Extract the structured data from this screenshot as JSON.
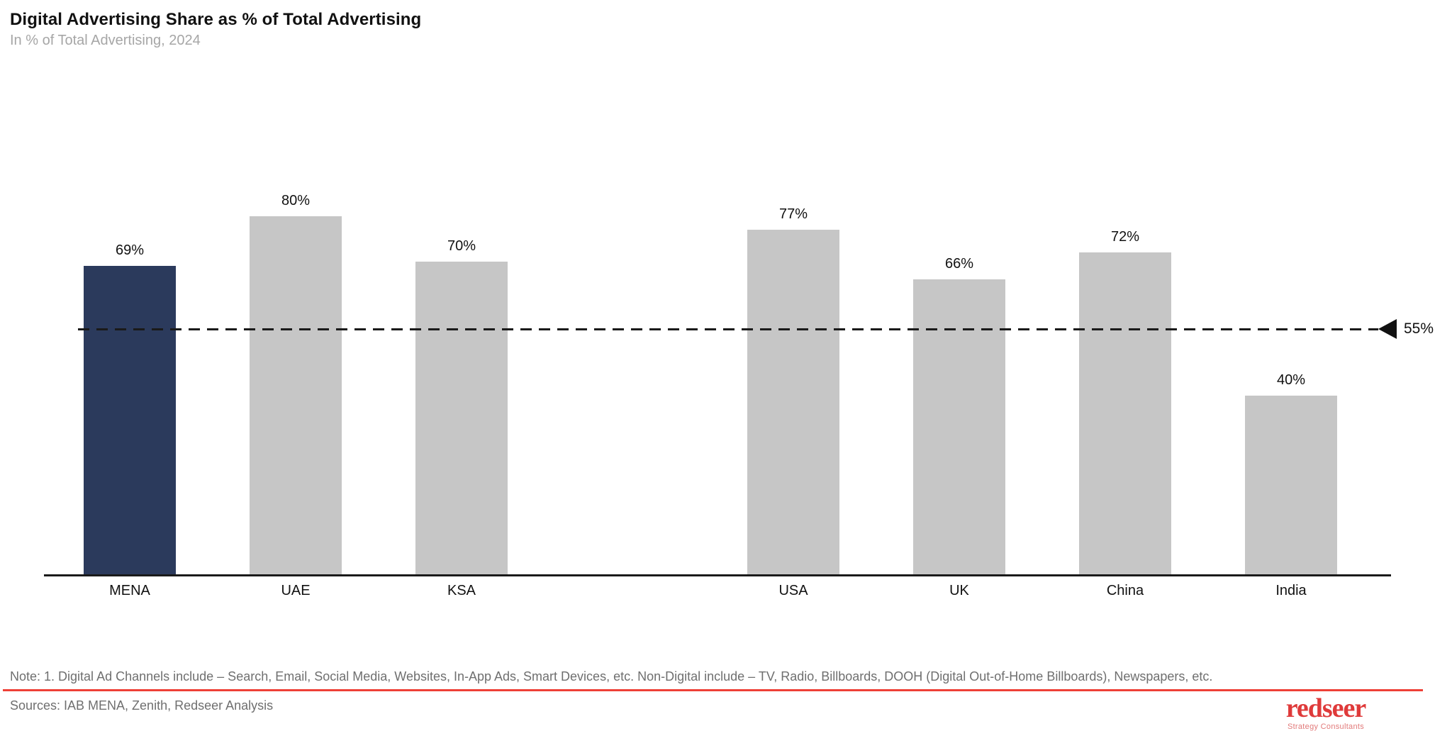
{
  "header": {
    "title": "Digital Advertising Share as % of Total Advertising",
    "subtitle": "In % of Total Advertising, 2024"
  },
  "chart_data": {
    "type": "bar",
    "categories": [
      "MENA",
      "UAE",
      "KSA",
      "USA",
      "UK",
      "China",
      "India"
    ],
    "values": [
      69,
      80,
      70,
      77,
      66,
      72,
      40
    ],
    "value_labels": [
      "69%",
      "80%",
      "70%",
      "77%",
      "66%",
      "72%",
      "40%"
    ],
    "title": "Digital Advertising Share as % of Total Advertising",
    "xlabel": "",
    "ylabel": "In % of Total Advertising, 2024",
    "ylim": [
      0,
      100
    ],
    "grid": false,
    "legend": "none",
    "highlight_category": "MENA",
    "highlight_color": "#2b3a5c",
    "default_bar_color": "#c6c6c6",
    "group_gap_after_index": 2,
    "reference_line": {
      "value": 55,
      "label": "55%",
      "style": "dashed",
      "color": "#1a1a1a",
      "marker": "left-arrow"
    }
  },
  "footer": {
    "note": "Note: 1. Digital Ad Channels include – Search, Email, Social Media, Websites, In-App Ads, Smart Devices, etc. Non-Digital include – TV, Radio, Billboards, DOOH (Digital Out-of-Home Billboards), Newspapers, etc.",
    "sources": "Sources: IAB MENA, Zenith, Redseer Analysis",
    "rule_color": "#ee4037"
  },
  "logo": {
    "wordmark": "redseer",
    "tagline": "Strategy Consultants",
    "color": "#df3a3a",
    "tagline_color": "#e27a7a"
  }
}
